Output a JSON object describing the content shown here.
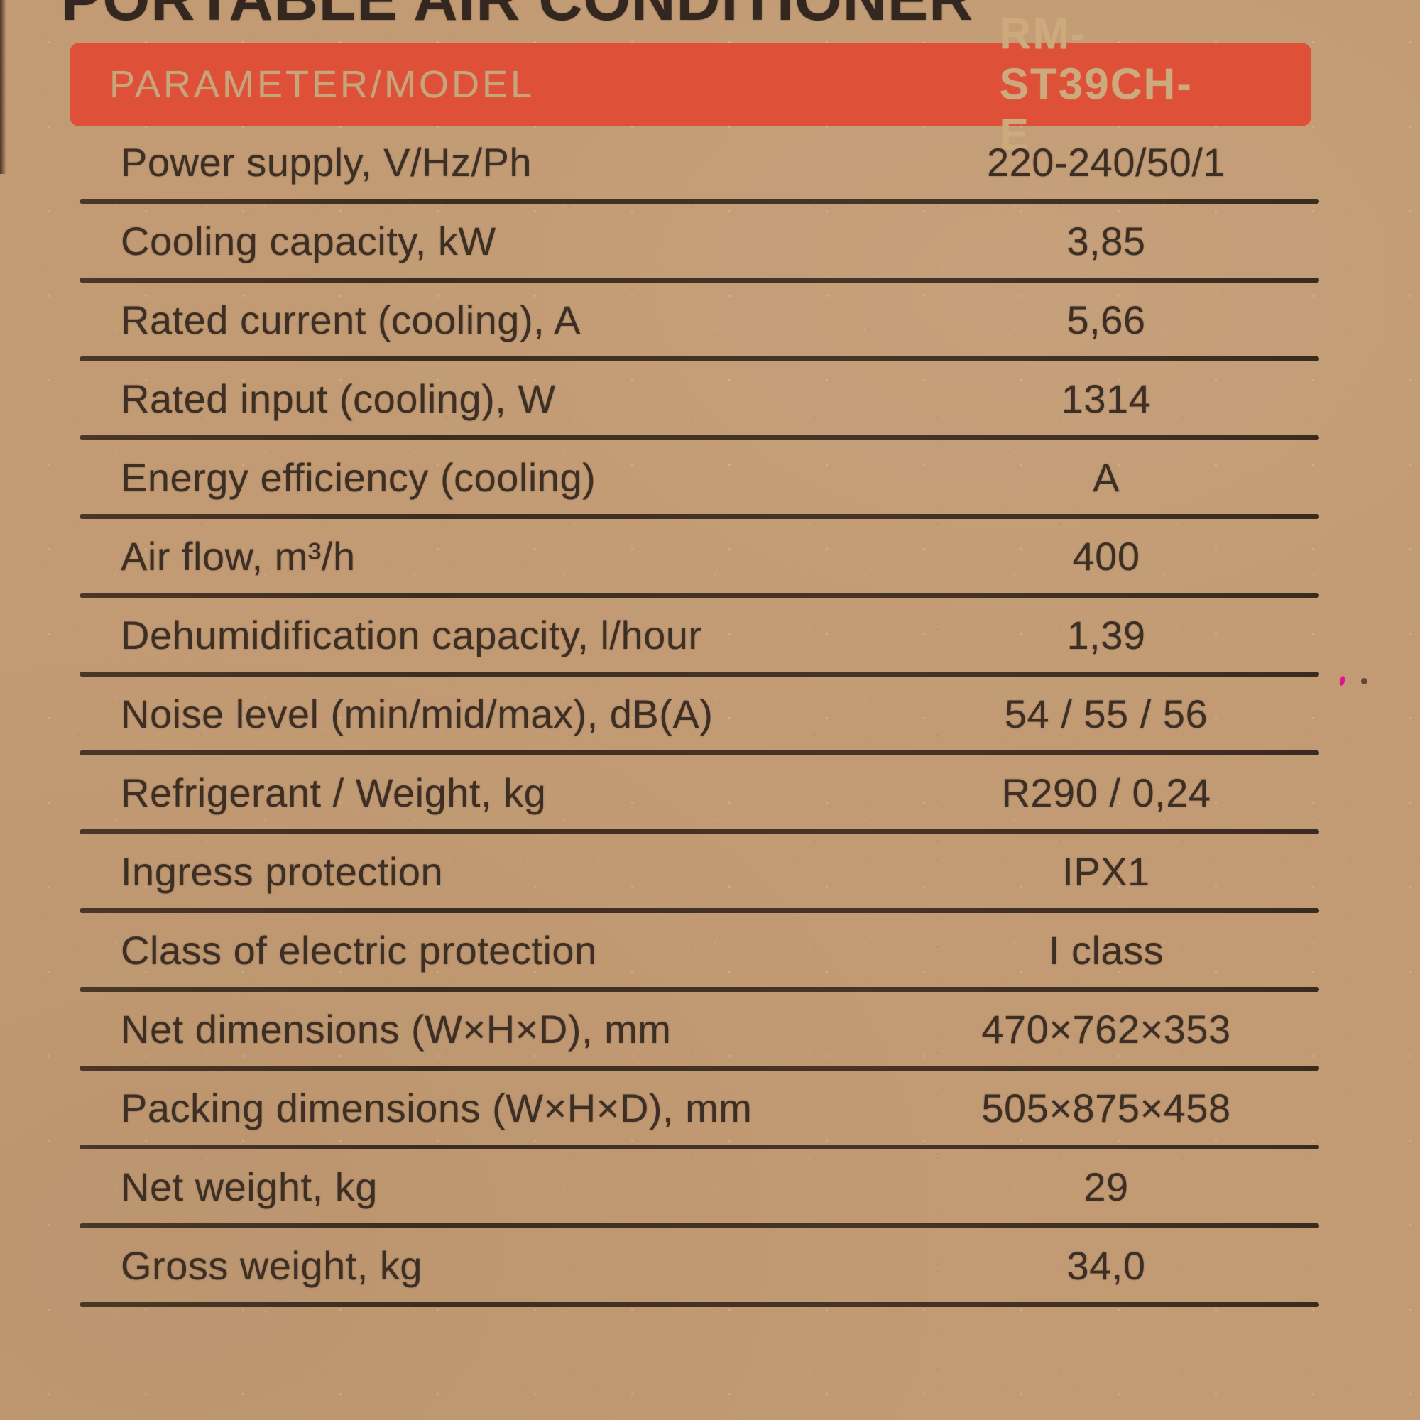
{
  "page_title": "PORTABLE AIR CONDITIONER",
  "header": {
    "label": "PARAMETER/MODEL",
    "model": "RM-ST39CH-E"
  },
  "table": {
    "rows": [
      {
        "label": "Power supply, V/Hz/Ph",
        "value": "220-240/50/1"
      },
      {
        "label": "Cooling capacity, kW",
        "value": "3,85"
      },
      {
        "label": "Rated current (cooling), A",
        "value": "5,66"
      },
      {
        "label": "Rated input (cooling), W",
        "value": "1314"
      },
      {
        "label": "Energy efficiency (cooling)",
        "value": "A"
      },
      {
        "label": "Air flow, m³/h",
        "value": "400"
      },
      {
        "label": "Dehumidification capacity, l/hour",
        "value": "1,39"
      },
      {
        "label": "Noise level (min/mid/max), dB(A)",
        "value": "54 / 55 / 56"
      },
      {
        "label": "Refrigerant / Weight, kg",
        "value": "R290 / 0,24"
      },
      {
        "label": "Ingress protection",
        "value": "IPX1"
      },
      {
        "label": "Class of electric protection",
        "value": "I class"
      },
      {
        "label": "Net dimensions (W×H×D), mm",
        "value": "470×762×353"
      },
      {
        "label": "Packing dimensions (W×H×D), mm",
        "value": "505×875×458"
      },
      {
        "label": "Net weight, kg",
        "value": "29"
      },
      {
        "label": "Gross weight, kg",
        "value": "34,0"
      }
    ]
  },
  "colors": {
    "cardboard": "#c29b74",
    "ink": "#3e2f25",
    "line": "#453328",
    "banner": "#de5138",
    "banner-text": "#c8a47b"
  }
}
